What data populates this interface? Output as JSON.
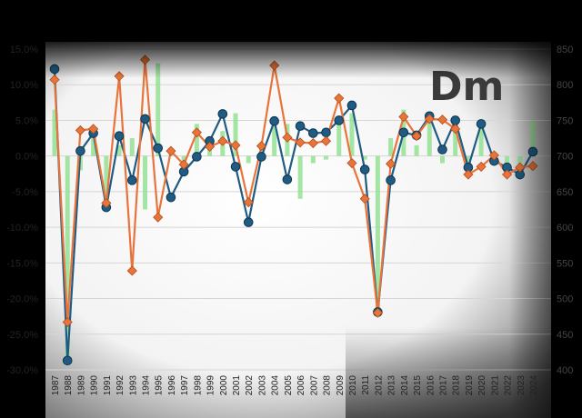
{
  "chart_data": {
    "type": "line",
    "title": "",
    "xlabel": "",
    "ylabel": "",
    "categories": [
      "1987",
      "1988",
      "1989",
      "1990",
      "1991",
      "1992",
      "1993",
      "1994",
      "1995",
      "1996",
      "1997",
      "1998",
      "1999",
      "2000",
      "2001",
      "2002",
      "2003",
      "2004",
      "2005",
      "2006",
      "2007",
      "2008",
      "2009",
      "2010",
      "2011",
      "2012",
      "2013",
      "2014",
      "2015",
      "2016",
      "2017",
      "2018",
      "2019",
      "2020",
      "2021",
      "2022",
      "2023",
      "2024"
    ],
    "ylim": [
      -30,
      15
    ],
    "y_ticks": [
      "15.0%",
      "10.0%",
      "5.0%",
      "0.0%",
      "-5.0%",
      "-10.0%",
      "-15.0%",
      "-20.0%",
      "-25.0%",
      "-30.0%"
    ],
    "y_tick_values": [
      15,
      10,
      5,
      0,
      -5,
      -10,
      -15,
      -20,
      -25,
      -30
    ],
    "right_axis_ticks": [
      "850",
      "800",
      "750",
      "700",
      "650",
      "600",
      "550",
      "500",
      "450",
      "400"
    ],
    "grid": true,
    "watermark": "Dm",
    "bars": {
      "color": "#8fe08f",
      "values": [
        6.5,
        -29,
        -2,
        3.5,
        -7,
        1.5,
        2.5,
        -7.5,
        13,
        0.5,
        -2,
        4.5,
        1.5,
        3.5,
        6,
        -1,
        1.5,
        5.5,
        4.5,
        -6,
        -1,
        -0.5,
        5,
        6,
        -0.5,
        -21.5,
        2.5,
        6.5,
        1.5,
        6,
        -1,
        4,
        -1,
        4.5,
        0,
        -1.5,
        -1.5,
        5
      ]
    },
    "series": [
      {
        "color": "#1f5b82",
        "marker": "circle",
        "values": [
          12.2,
          -28.7,
          0.7,
          3.2,
          -7.2,
          2.8,
          -3.4,
          5.2,
          1.1,
          -5.8,
          -2.2,
          -0.1,
          2.1,
          5.9,
          -1.5,
          -9.3,
          -0.1,
          4.9,
          -3.3,
          4.2,
          3.2,
          3.3,
          5.0,
          7.1,
          -1.9,
          -21.9,
          -3.4,
          3.3,
          2.9,
          5.6,
          0.9,
          5.0,
          -1.6,
          4.5,
          -0.7,
          -1.6,
          -2.6,
          0.6
        ]
      },
      {
        "color": "#e8743b",
        "marker": "diamond",
        "values": [
          10.7,
          -23.3,
          3.6,
          3.8,
          -6.6,
          11.2,
          -16.1,
          13.5,
          -8.6,
          0.7,
          -1.2,
          3.3,
          1.3,
          2.1,
          1.5,
          -6.5,
          1.4,
          12.7,
          2.6,
          1.9,
          1.8,
          2.1,
          8.1,
          -1.0,
          -6.0,
          -22.0,
          -1.1,
          5.5,
          2.8,
          5.2,
          5.1,
          3.8,
          -2.6,
          -1.5,
          0.1,
          -2.6,
          -1.6,
          -1.4
        ]
      }
    ]
  }
}
